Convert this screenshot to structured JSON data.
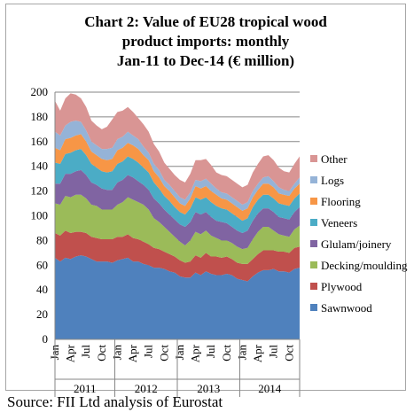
{
  "chart_data": {
    "type": "area",
    "title_lines": [
      "Chart 2: Value of EU28 tropical wood",
      "product imports: monthly",
      "Jan-11 to Dec-14 (€ million)"
    ],
    "ylim": [
      0,
      200
    ],
    "y_ticks": [
      "0",
      "20",
      "40",
      "60",
      "80",
      "100",
      "120",
      "140",
      "160",
      "180",
      "200"
    ],
    "month_labels": [
      "Jan",
      "Apr",
      "Jul",
      "Oct"
    ],
    "years": [
      "2011",
      "2012",
      "2013",
      "2014"
    ],
    "grid": "horizontal",
    "legend_position": "right",
    "series": [
      {
        "name": "Sawnwood",
        "color": "#4f81bd",
        "values": [
          66,
          63,
          66,
          65,
          67,
          68,
          67,
          65,
          63,
          63,
          63,
          62,
          64,
          65,
          66,
          63,
          63,
          61,
          60,
          58,
          58,
          57,
          55,
          54,
          51,
          50,
          50,
          54,
          52,
          55,
          53,
          52,
          52,
          53,
          52,
          49,
          48,
          47,
          51,
          54,
          56,
          56,
          57,
          55,
          55,
          54,
          57,
          58
        ]
      },
      {
        "name": "Plywood",
        "color": "#c0504d",
        "values": [
          20,
          21,
          22,
          21,
          20,
          19,
          19,
          18,
          19,
          18,
          18,
          19,
          19,
          18,
          19,
          19,
          18,
          18,
          17,
          16,
          15,
          14,
          14,
          13,
          13,
          12,
          13,
          14,
          14,
          15,
          14,
          15,
          14,
          14,
          13,
          13,
          13,
          14,
          14,
          15,
          16,
          16,
          15,
          16,
          16,
          16,
          17,
          17
        ]
      },
      {
        "name": "Decking/moulding",
        "color": "#9bbb59",
        "values": [
          24,
          25,
          28,
          29,
          30,
          30,
          28,
          26,
          26,
          24,
          24,
          24,
          26,
          28,
          30,
          31,
          30,
          30,
          28,
          24,
          22,
          20,
          18,
          16,
          15,
          14,
          17,
          19,
          19,
          18,
          17,
          15,
          14,
          13,
          13,
          13,
          12,
          13,
          16,
          18,
          19,
          19,
          16,
          14,
          13,
          13,
          15,
          17
        ]
      },
      {
        "name": "Glulam/joinery",
        "color": "#8064a2",
        "values": [
          16,
          17,
          18,
          19,
          19,
          20,
          19,
          18,
          17,
          17,
          16,
          16,
          18,
          18,
          18,
          18,
          17,
          16,
          16,
          16,
          15,
          14,
          14,
          14,
          14,
          15,
          15,
          16,
          16,
          15,
          15,
          14,
          15,
          14,
          13,
          13,
          13,
          14,
          15,
          15,
          15,
          15,
          15,
          14,
          14,
          14,
          14,
          15
        ]
      },
      {
        "name": "Veneers",
        "color": "#4bacc6",
        "values": [
          17,
          16,
          16,
          17,
          17,
          17,
          16,
          15,
          14,
          14,
          14,
          15,
          15,
          15,
          15,
          15,
          15,
          14,
          14,
          13,
          12,
          11,
          11,
          10,
          10,
          10,
          11,
          12,
          12,
          12,
          12,
          12,
          11,
          11,
          11,
          11,
          10,
          10,
          11,
          11,
          11,
          11,
          11,
          11,
          11,
          11,
          11,
          11
        ]
      },
      {
        "name": "Flooring",
        "color": "#f79646",
        "values": [
          12,
          11,
          12,
          12,
          12,
          12,
          11,
          10,
          10,
          10,
          10,
          10,
          11,
          11,
          11,
          11,
          11,
          10,
          10,
          9,
          9,
          8,
          8,
          8,
          7,
          7,
          8,
          9,
          9,
          9,
          9,
          9,
          8,
          8,
          8,
          8,
          8,
          8,
          8,
          8,
          9,
          9,
          9,
          8,
          8,
          8,
          8,
          8
        ]
      },
      {
        "name": "Logs",
        "color": "#95b3d7",
        "values": [
          13,
          12,
          11,
          13,
          12,
          10,
          9,
          8,
          8,
          8,
          9,
          9,
          9,
          9,
          9,
          8,
          8,
          7,
          6,
          6,
          6,
          5,
          5,
          5,
          5,
          5,
          5,
          5,
          6,
          6,
          6,
          5,
          5,
          5,
          5,
          5,
          5,
          5,
          5,
          5,
          5,
          6,
          5,
          5,
          4,
          4,
          4,
          5
        ]
      },
      {
        "name": "Other",
        "color": "#d99594",
        "values": [
          25,
          20,
          22,
          23,
          21,
          19,
          19,
          17,
          16,
          16,
          18,
          23,
          22,
          21,
          20,
          19,
          17,
          18,
          17,
          16,
          15,
          14,
          13,
          13,
          14,
          14,
          15,
          16,
          17,
          16,
          15,
          13,
          14,
          14,
          14,
          14,
          14,
          14,
          15,
          16,
          17,
          17,
          17,
          16,
          15,
          15,
          16,
          17
        ]
      }
    ]
  },
  "source": "Source: FII Ltd analysis of Eurostat"
}
